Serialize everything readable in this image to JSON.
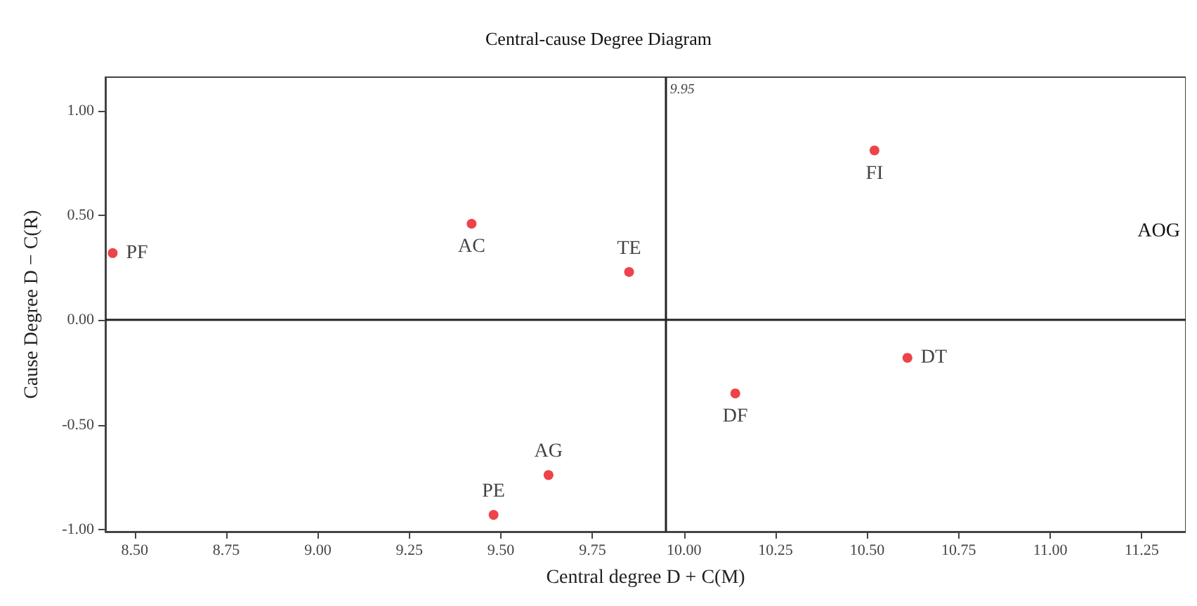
{
  "chart_data": {
    "type": "scatter",
    "title": "Central-cause Degree Diagram",
    "xlabel": "Central degree D + C(M)",
    "ylabel": "Cause Degree D − C(R)",
    "x": [
      8.44,
      9.42,
      9.85,
      10.52,
      10.61,
      10.14,
      9.63,
      9.48
    ],
    "values": [
      0.32,
      0.46,
      0.23,
      0.81,
      -0.18,
      -0.35,
      -0.74,
      -0.93
    ],
    "value_labels": [
      "PF",
      "AC",
      "TE",
      "FI",
      "DT",
      "DF",
      "AG",
      "PE"
    ],
    "color": "#e8141c",
    "marker": "circle",
    "grid": false,
    "xlim": [
      8.42,
      11.37
    ],
    "ylim": [
      -1.01,
      1.16
    ],
    "xticks": [
      {
        "value": 8.5,
        "label": "8.50"
      },
      {
        "value": 8.75,
        "label": "8.75"
      },
      {
        "value": 9,
        "label": "9.00"
      },
      {
        "value": 9.25,
        "label": "9.25"
      },
      {
        "value": 9.5,
        "label": "9.50"
      },
      {
        "value": 9.75,
        "label": "9.75"
      },
      {
        "value": 10,
        "label": "10.00"
      },
      {
        "value": 10.25,
        "label": "10.25"
      },
      {
        "value": 10.5,
        "label": "10.50"
      },
      {
        "value": 10.75,
        "label": "10.75"
      },
      {
        "value": 11,
        "label": "11.00"
      },
      {
        "value": 11.25,
        "label": "11.25"
      }
    ],
    "yticks": [
      {
        "value": -1,
        "label": "-1.00"
      },
      {
        "value": -0.5,
        "label": "-0.50"
      },
      {
        "value": 0,
        "label": "0.00"
      },
      {
        "value": 0.5,
        "label": "0.50"
      },
      {
        "value": 1,
        "label": "1.00"
      }
    ],
    "ref_lines": [
      {
        "axis": "x",
        "value": 9.95,
        "label": "9.95"
      },
      {
        "axis": "y",
        "value": 0
      }
    ],
    "annotations": [
      "AOG"
    ]
  }
}
